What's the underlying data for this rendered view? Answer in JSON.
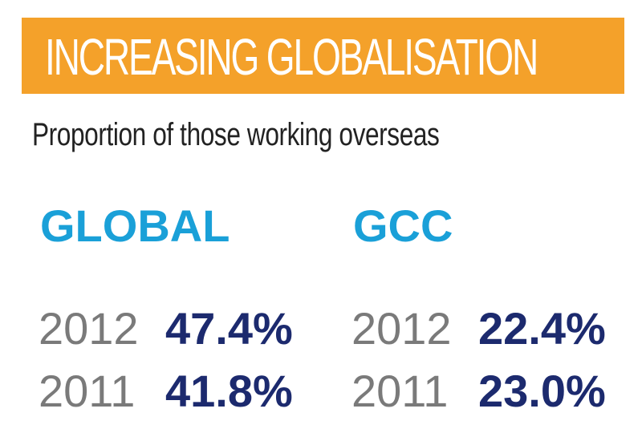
{
  "header": {
    "title": "INCREASING GLOBALISATION",
    "background_color": "#f4a12a",
    "text_color": "#ffffff"
  },
  "subtitle": "Proportion of those working overseas",
  "colors": {
    "region_label": "#1aa0d8",
    "year": "#7a7a7a",
    "value": "#1c2a6e"
  },
  "regions": [
    {
      "label": "GLOBAL",
      "stats": [
        {
          "year": "2012",
          "value": "47.4%"
        },
        {
          "year": "2011",
          "value": "41.8%"
        }
      ]
    },
    {
      "label": "GCC",
      "stats": [
        {
          "year": "2012",
          "value": "22.4%"
        },
        {
          "year": "2011",
          "value": "23.0%"
        }
      ]
    }
  ]
}
